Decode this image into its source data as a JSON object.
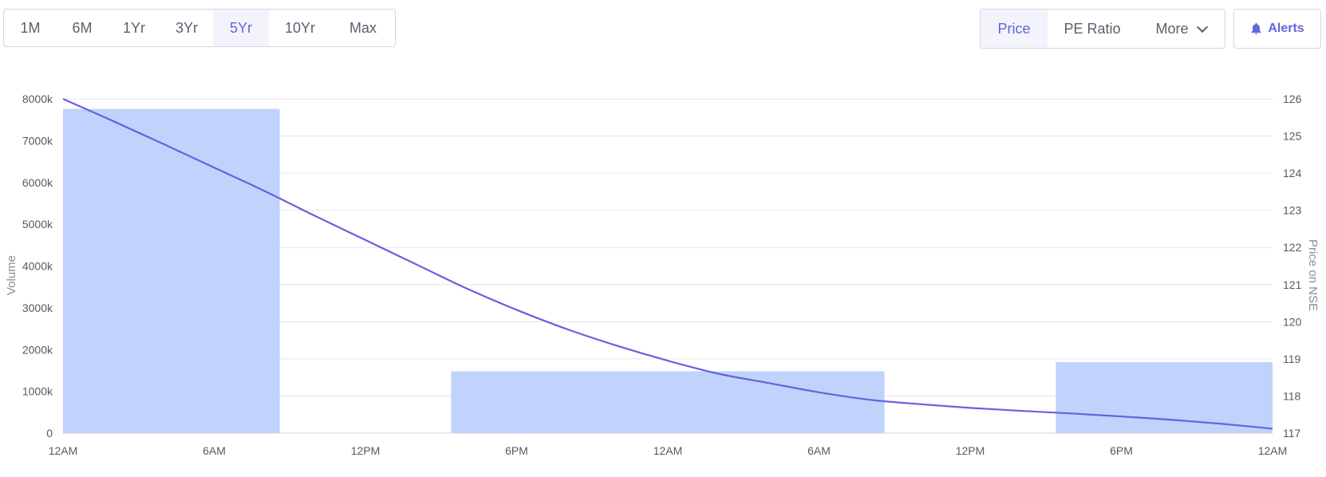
{
  "ranges": [
    {
      "label": "1M",
      "active": false
    },
    {
      "label": "6M",
      "active": false
    },
    {
      "label": "1Yr",
      "active": false
    },
    {
      "label": "3Yr",
      "active": false
    },
    {
      "label": "5Yr",
      "active": true
    },
    {
      "label": "10Yr",
      "active": false
    },
    {
      "label": "Max",
      "active": false
    }
  ],
  "metrics": {
    "price_label": "Price",
    "pe_label": "PE Ratio",
    "more_label": "More",
    "active": "Price"
  },
  "alerts": {
    "label": "Alerts",
    "icon": "bell-icon"
  },
  "colors": {
    "accent": "#6466d9",
    "bar": "#bfd3fc",
    "line": "#6a5fe0",
    "grid": "#e6e6e6"
  },
  "chart_data": {
    "type": "bar+line",
    "xlabel": "",
    "x_ticks": [
      "12AM",
      "6AM",
      "12PM",
      "6PM",
      "12AM",
      "6AM",
      "12PM",
      "6PM",
      "12AM"
    ],
    "x_range_hours": [
      0,
      48
    ],
    "y_left": {
      "label": "Volume",
      "range": [
        0,
        8000
      ],
      "ticks": [
        0,
        1000,
        2000,
        3000,
        4000,
        5000,
        6000,
        7000,
        8000
      ],
      "tick_labels": [
        "0",
        "1000k",
        "2000k",
        "3000k",
        "4000k",
        "5000k",
        "6000k",
        "7000k",
        "8000k"
      ]
    },
    "y_right": {
      "label": "Price on NSE",
      "range": [
        117,
        126
      ],
      "ticks": [
        117,
        118,
        119,
        120,
        121,
        122,
        123,
        124,
        125,
        126
      ]
    },
    "volume_bars": [
      {
        "start_hour": 0,
        "end_hour": 8.6,
        "value": 7760
      },
      {
        "start_hour": 15.4,
        "end_hour": 32.6,
        "value": 1480
      },
      {
        "start_hour": 39.4,
        "end_hour": 48,
        "value": 1700
      }
    ],
    "price_series": {
      "name": "",
      "points": [
        [
          0,
          126.0
        ],
        [
          2,
          125.4
        ],
        [
          4,
          124.78
        ],
        [
          6,
          124.15
        ],
        [
          8,
          123.52
        ],
        [
          10,
          122.85
        ],
        [
          12,
          122.2
        ],
        [
          14,
          121.55
        ],
        [
          16,
          120.9
        ],
        [
          18,
          120.32
        ],
        [
          20,
          119.8
        ],
        [
          22,
          119.35
        ],
        [
          24,
          118.95
        ],
        [
          26,
          118.6
        ],
        [
          28,
          118.35
        ],
        [
          30,
          118.1
        ],
        [
          32,
          117.9
        ],
        [
          34,
          117.78
        ],
        [
          36,
          117.68
        ],
        [
          38,
          117.6
        ],
        [
          40,
          117.53
        ],
        [
          42,
          117.45
        ],
        [
          44,
          117.36
        ],
        [
          46,
          117.25
        ],
        [
          48,
          117.12
        ]
      ]
    },
    "grid": true,
    "legend": "none"
  }
}
